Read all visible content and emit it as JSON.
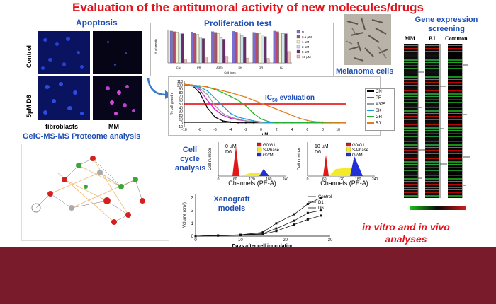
{
  "title": "Evaluation of the antitumoral activity of new molecules/drugs",
  "apoptosis": {
    "heading": "Apoptosis",
    "row_control": "Control",
    "row_drug": "5µM D6",
    "col_fibro": "fibroblasts",
    "col_mm": "MM"
  },
  "proliferation": {
    "heading": "Proliferation test",
    "ylabel": "% of growth",
    "xlabel": "Cell lines",
    "categories": [
      "CN",
      "PR",
      "A375",
      "SK",
      "GR",
      "BJ"
    ],
    "legend": [
      "N",
      "0.1 µM",
      "1 µM",
      "2 µM",
      "5 µM",
      "10 µM"
    ],
    "colors": [
      "#7a6fd0",
      "#b74b6c",
      "#f7f4d2",
      "#cbe8ea",
      "#6a2a6b",
      "#f3bdb7"
    ],
    "series": [
      [
        98,
        95,
        96,
        97,
        94,
        98
      ],
      [
        96,
        93,
        94,
        95,
        92,
        96
      ],
      [
        95,
        88,
        90,
        93,
        90,
        92
      ],
      [
        92,
        80,
        78,
        84,
        86,
        91
      ],
      [
        90,
        75,
        73,
        80,
        81,
        90
      ],
      [
        12,
        18,
        20,
        15,
        14,
        35
      ]
    ]
  },
  "melanoma_label": "Melanoma cells",
  "gene_expression": {
    "heading": "Gene expression screening",
    "cols": [
      "MM",
      "BJ",
      "Common"
    ]
  },
  "ic50": {
    "label": "IC",
    "label_sub": "50",
    "label_rest": " evaluation",
    "ylabel": "% cell growth",
    "xlabel": "uM",
    "legend": [
      "CN",
      "PR",
      "A375",
      "SK",
      "GR",
      "BJ"
    ],
    "colors": [
      "#000000",
      "#d217d2",
      "#9b9b9b",
      "#1c9ad8",
      "#26b226",
      "#e07a1a"
    ],
    "threshold": 50
  },
  "chart_data": {
    "type": "line",
    "x": [
      -10,
      -9,
      -8,
      -7,
      -6,
      -5,
      -4,
      -3,
      -2,
      -1,
      0,
      1,
      2,
      3,
      4,
      5,
      6,
      7,
      8,
      9,
      10,
      11
    ],
    "series": [
      {
        "name": "CN",
        "values": [
          102,
          100,
          80,
          40,
          15,
          5,
          2,
          0,
          0,
          0,
          0,
          0,
          0,
          0,
          0,
          0,
          0,
          0,
          0,
          0,
          0,
          0
        ]
      },
      {
        "name": "PR",
        "values": [
          102,
          100,
          88,
          60,
          35,
          20,
          12,
          8,
          5,
          3,
          0,
          0,
          0,
          0,
          0,
          0,
          0,
          0,
          0,
          0,
          0,
          0
        ]
      },
      {
        "name": "A375",
        "values": [
          100,
          98,
          92,
          75,
          45,
          25,
          15,
          10,
          5,
          3,
          0,
          0,
          0,
          0,
          0,
          0,
          0,
          0,
          0,
          0,
          0,
          0
        ]
      },
      {
        "name": "SK",
        "values": [
          100,
          98,
          95,
          85,
          65,
          45,
          25,
          15,
          10,
          5,
          2,
          0,
          0,
          0,
          0,
          0,
          0,
          0,
          0,
          0,
          0,
          0
        ]
      },
      {
        "name": "GR",
        "values": [
          102,
          100,
          98,
          95,
          88,
          80,
          70,
          60,
          45,
          25,
          10,
          3,
          0,
          0,
          0,
          0,
          0,
          0,
          0,
          0,
          0,
          0
        ]
      },
      {
        "name": "BJ",
        "values": [
          102,
          100,
          98,
          95,
          90,
          85,
          80,
          74,
          68,
          60,
          52,
          44,
          36,
          28,
          20,
          12,
          6,
          3,
          2,
          1,
          1,
          0
        ]
      }
    ],
    "xlim": [
      -10,
      11
    ],
    "ylim": [
      -10,
      110
    ],
    "yticks": [
      -10,
      0,
      10,
      20,
      30,
      40,
      50,
      60,
      70,
      80,
      90,
      100,
      110
    ],
    "xticks": [
      -10,
      -8,
      -6,
      -4,
      -2,
      0,
      2,
      4,
      6,
      8,
      10
    ]
  },
  "gelc": {
    "heading": "GelC-MS-MS Proteome analysis"
  },
  "cell_cycle": {
    "heading": "Cell cycle analysis",
    "ylabel": "Cell number",
    "xlabel": "Channels (PE-A)",
    "left_title": "0 µM",
    "left_sub": "D6",
    "right_title": "10 µM",
    "right_sub": "D6",
    "legend": [
      "G0/G1",
      "S-Phase",
      "G2/M"
    ],
    "xticks": [
      "0",
      "60",
      "120",
      "180",
      "240"
    ]
  },
  "xenograft": {
    "heading": "Xenograft models",
    "ylabel": "Volume (cm³)",
    "xlabel": "Days after cell inoculation",
    "legend": [
      "Control",
      "D1",
      "D6"
    ],
    "xticks": [
      "0",
      "10",
      "20",
      "30"
    ],
    "yticks": [
      "0",
      "1",
      "2",
      "3"
    ]
  },
  "tagline": "in vitro and in vivo analyses"
}
